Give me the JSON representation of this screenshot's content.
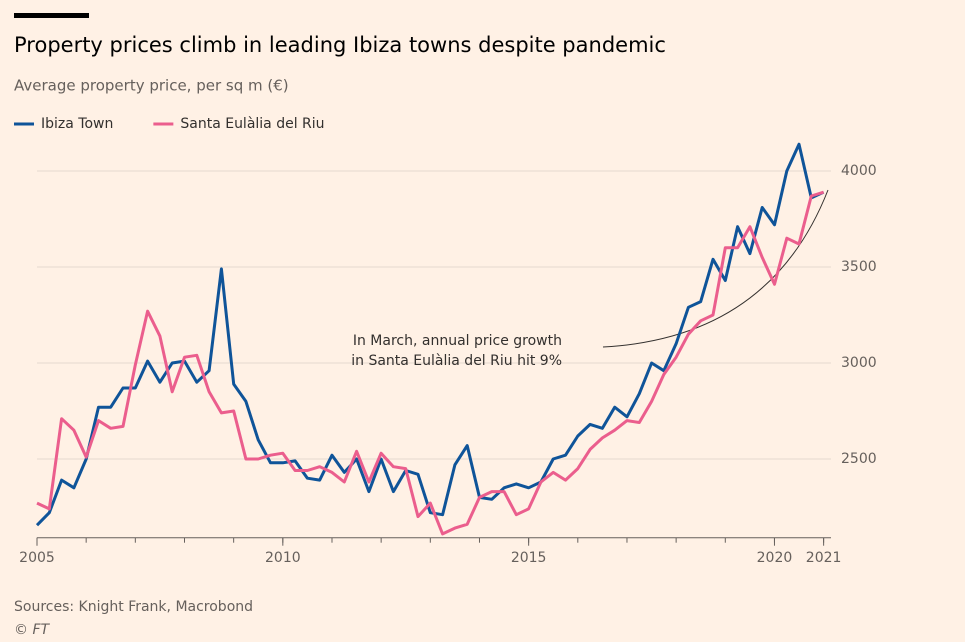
{
  "chart_data": {
    "type": "line",
    "title": "Property prices climb in leading Ibiza towns despite pandemic",
    "subtitle": "Average property price, per sq m (€)",
    "source": "Sources: Knight Frank, Macrobond",
    "credit": "© FT",
    "annotation": [
      "In March, annual price growth",
      "in Santa Eulàlia del Riu hit 9%"
    ],
    "x": [
      2005,
      2005.25,
      2005.5,
      2005.75,
      2006,
      2006.25,
      2006.5,
      2006.75,
      2007,
      2007.25,
      2007.5,
      2007.75,
      2008,
      2008.25,
      2008.5,
      2008.75,
      2009,
      2009.25,
      2009.5,
      2009.75,
      2010,
      2010.25,
      2010.5,
      2010.75,
      2011,
      2011.25,
      2011.5,
      2011.75,
      2012,
      2012.25,
      2012.5,
      2012.75,
      2013,
      2013.25,
      2013.5,
      2013.75,
      2014,
      2014.25,
      2014.5,
      2014.75,
      2015,
      2015.25,
      2015.5,
      2015.75,
      2016,
      2016.25,
      2016.5,
      2016.75,
      2017,
      2017.25,
      2017.5,
      2017.75,
      2018,
      2018.25,
      2018.5,
      2018.75,
      2019,
      2019.25,
      2019.5,
      2019.75,
      2020,
      2020.25,
      2020.5,
      2020.75,
      2021
    ],
    "series": [
      {
        "name": "Ibiza Town",
        "color": "#0f5499",
        "values": [
          2155,
          2220,
          2390,
          2350,
          2500,
          2770,
          2770,
          2870,
          2870,
          3010,
          2900,
          3000,
          3010,
          2900,
          2960,
          3490,
          2890,
          2800,
          2600,
          2480,
          2480,
          2490,
          2400,
          2390,
          2520,
          2430,
          2500,
          2330,
          2500,
          2330,
          2440,
          2420,
          2220,
          2210,
          2470,
          2570,
          2300,
          2290,
          2350,
          2370,
          2350,
          2380,
          2500,
          2520,
          2620,
          2680,
          2660,
          2770,
          2720,
          2840,
          3000,
          2960,
          3100,
          3290,
          3320,
          3540,
          3430,
          3710,
          3570,
          3810,
          3720,
          4000,
          4140,
          3860,
          3890
        ]
      },
      {
        "name": "Santa Eulàlia del Riu",
        "color": "#eb5e8d",
        "values": [
          2270,
          2240,
          2710,
          2650,
          2510,
          2700,
          2660,
          2670,
          2990,
          3270,
          3140,
          2850,
          3030,
          3040,
          2850,
          2740,
          2750,
          2500,
          2500,
          2520,
          2530,
          2440,
          2440,
          2460,
          2430,
          2380,
          2540,
          2380,
          2530,
          2460,
          2450,
          2200,
          2270,
          2110,
          2140,
          2160,
          2300,
          2330,
          2330,
          2210,
          2240,
          2380,
          2430,
          2390,
          2450,
          2550,
          2610,
          2650,
          2700,
          2690,
          2800,
          2940,
          3030,
          3150,
          3220,
          3250,
          3600,
          3600,
          3710,
          3550,
          3410,
          3650,
          3620,
          3870,
          3890
        ]
      }
    ],
    "xlim": [
      2005,
      2021.15
    ],
    "xticks": [
      2005,
      2010,
      2015,
      2020,
      2021
    ],
    "xminorticks": [
      2005,
      2006,
      2007,
      2008,
      2009,
      2010,
      2011,
      2012,
      2013,
      2014,
      2015,
      2016,
      2017,
      2018,
      2019,
      2020,
      2021
    ],
    "ylim": [
      2090,
      4170
    ],
    "yticks": [
      2500,
      3000,
      3500,
      4000
    ],
    "grid": true,
    "legend": "top-left"
  }
}
